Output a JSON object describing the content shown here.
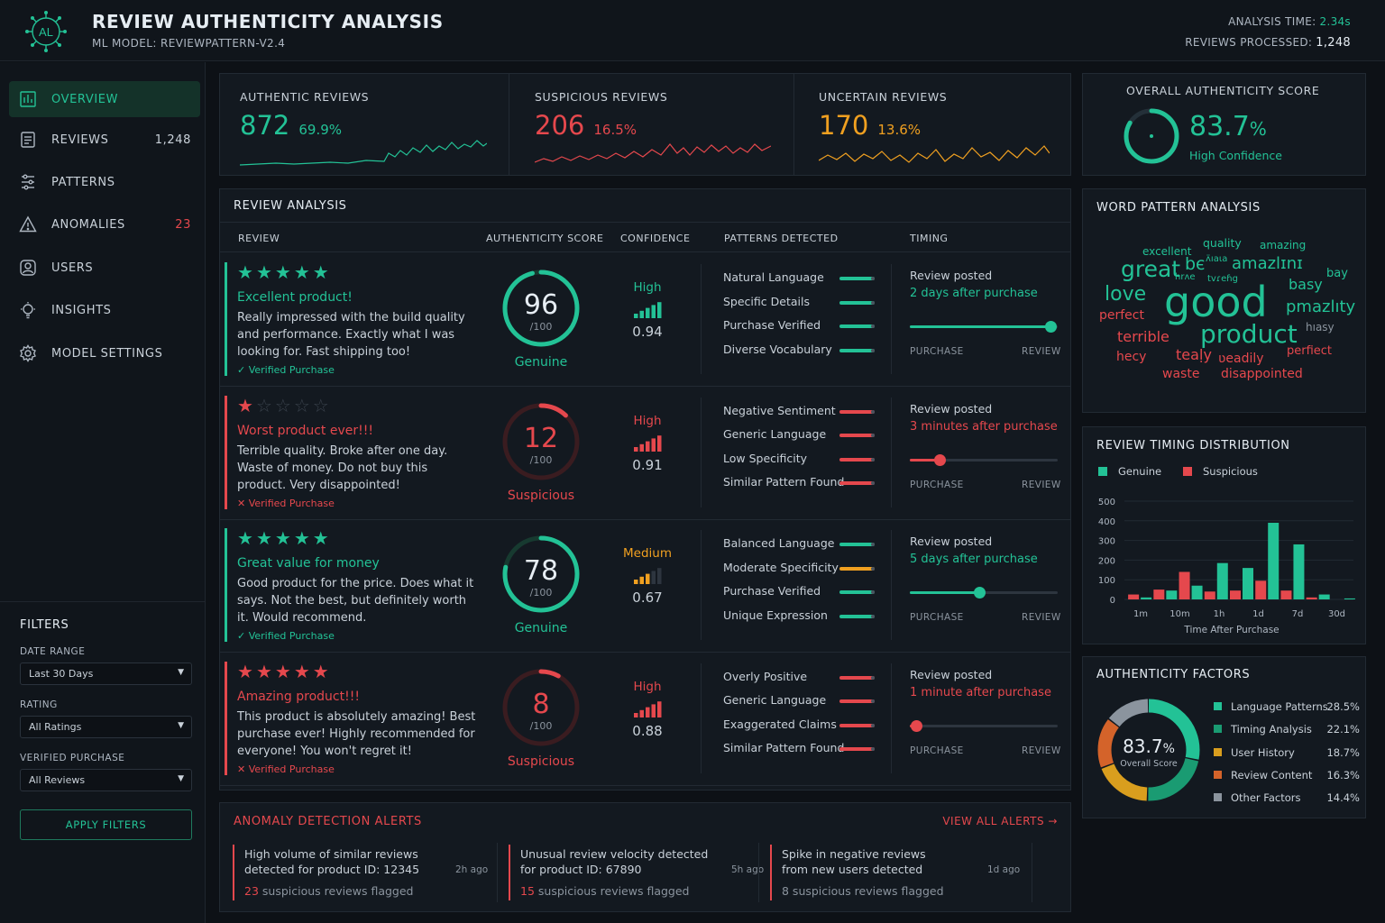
{
  "header": {
    "logo_text": "AL",
    "title": "REVIEW AUTHENTICITY ANALYSIS",
    "model": "ML MODEL: REVIEWPATTERN-V2.4",
    "analysis_time_label": "ANALYSIS TIME:",
    "analysis_time_value": "2.34s",
    "reviews_processed_label": "REVIEWS PROCESSED:",
    "reviews_processed_value": "1,248"
  },
  "sidebar": {
    "items": [
      {
        "label": "OVERVIEW",
        "count": "",
        "icon": "grid-chart-icon"
      },
      {
        "label": "REVIEWS",
        "count": "1,248",
        "icon": "document-icon"
      },
      {
        "label": "PATTERNS",
        "count": "",
        "icon": "pattern-icon"
      },
      {
        "label": "ANOMALIES",
        "count": "23",
        "icon": "warning-icon"
      },
      {
        "label": "USERS",
        "count": "",
        "icon": "user-icon"
      },
      {
        "label": "INSIGHTS",
        "count": "",
        "icon": "lightbulb-icon"
      },
      {
        "label": "MODEL SETTINGS",
        "count": "",
        "icon": "gear-icon"
      }
    ],
    "filters": {
      "title": "FILTERS",
      "date_range_label": "DATE RANGE",
      "date_range_value": "Last 30 Days",
      "rating_label": "RATING",
      "rating_value": "All Ratings",
      "verified_label": "VERIFIED PURCHASE",
      "verified_value": "All Reviews",
      "apply_label": "APPLY FILTERS"
    }
  },
  "stats": [
    {
      "label": "AUTHENTIC REVIEWS",
      "value": "872",
      "pct": "69.9%",
      "color": "#23c296"
    },
    {
      "label": "SUSPICIOUS REVIEWS",
      "value": "206",
      "pct": "16.5%",
      "color": "#e5484d"
    },
    {
      "label": "UNCERTAIN REVIEWS",
      "value": "170",
      "pct": "13.6%",
      "color": "#f0a020"
    }
  ],
  "overall": {
    "title": "OVERALL AUTHENTICITY SCORE",
    "value": "83.7",
    "pct_sign": "%",
    "confidence": "High Confidence",
    "fraction": 0.837
  },
  "review_analysis": {
    "title": "REVIEW ANALYSIS",
    "columns": [
      "REVIEW",
      "AUTHENTICITY SCORE",
      "CONFIDENCE",
      "PATTERNS DETECTED",
      "TIMING"
    ],
    "rows": [
      {
        "stars": 5,
        "title": "Excellent product!",
        "body": "Really impressed with the build quality and performance. Exactly what I was looking for. Fast shipping too!",
        "verified": "✓ Verified Purchase",
        "kind": "genuine",
        "score": "96",
        "score_den": "/100",
        "score_label": "Genuine",
        "confidence": "High",
        "conf_level": 5,
        "conf_value": "0.94",
        "patterns": [
          "Natural Language",
          "Specific Details",
          "Purchase Verified",
          "Diverse Vocabulary"
        ],
        "pattern_colors": [
          "#23c296",
          "#23c296",
          "#23c296",
          "#23c296"
        ],
        "timing_line1": "Review posted",
        "timing_line2": "2 days after purchase",
        "timing_pos": 0.95,
        "timing_left": "PURCHASE",
        "timing_right": "REVIEW"
      },
      {
        "stars": 1,
        "title": "Worst product ever!!!",
        "body": "Terrible quality. Broke after one day. Waste of money. Do not buy this product. Very disappointed!",
        "verified": "✕ Verified Purchase",
        "kind": "suspicious",
        "score": "12",
        "score_den": "/100",
        "score_label": "Suspicious",
        "confidence": "High",
        "conf_level": 5,
        "conf_value": "0.91",
        "patterns": [
          "Negative Sentiment",
          "Generic Language",
          "Low Specificity",
          "Similar Pattern Found"
        ],
        "pattern_colors": [
          "#e5484d",
          "#e5484d",
          "#e5484d",
          "#e5484d"
        ],
        "timing_line1": "Review posted",
        "timing_line2": "3 minutes after purchase",
        "timing_pos": 0.2,
        "timing_left": "PURCHASE",
        "timing_right": "REVIEW"
      },
      {
        "stars": 5,
        "title": "Great value for money",
        "body": "Good product for the price. Does what it says. Not the best, but definitely worth it. Would recommend.",
        "verified": "✓ Verified Purchase",
        "kind": "genuine",
        "score": "78",
        "score_den": "/100",
        "score_label": "Genuine",
        "confidence": "Medium",
        "conf_level": 3,
        "conf_value": "0.67",
        "patterns": [
          "Balanced Language",
          "Moderate Specificity",
          "Purchase Verified",
          "Unique Expression"
        ],
        "pattern_colors": [
          "#23c296",
          "#f0a020",
          "#23c296",
          "#23c296"
        ],
        "timing_line1": "Review posted",
        "timing_line2": "5 days after purchase",
        "timing_pos": 0.47,
        "timing_left": "PURCHASE",
        "timing_right": "REVIEW"
      },
      {
        "stars": 5,
        "title": "Amazing product!!!",
        "body": "This product is absolutely amazing! Best purchase ever! Highly recommended for everyone! You won't regret it!",
        "verified": "✕ Verified Purchase",
        "kind": "suspicious",
        "score": "8",
        "score_den": "/100",
        "score_label": "Suspicious",
        "confidence": "High",
        "conf_level": 5,
        "conf_value": "0.88",
        "patterns": [
          "Overly Positive",
          "Generic Language",
          "Exaggerated Claims",
          "Similar Pattern Found"
        ],
        "pattern_colors": [
          "#e5484d",
          "#e5484d",
          "#e5484d",
          "#e5484d"
        ],
        "timing_line1": "Review posted",
        "timing_line2": "1 minute after purchase",
        "timing_pos": 0.04,
        "timing_left": "PURCHASE",
        "timing_right": "REVIEW"
      }
    ]
  },
  "word_pattern": {
    "title": "WORD PATTERN ANALYSIS",
    "words": [
      {
        "t": "excellent",
        "c": "#23c296"
      },
      {
        "t": "quality",
        "c": "#23c296"
      },
      {
        "t": "amazing",
        "c": "#23c296"
      },
      {
        "t": "great",
        "c": "#23c296"
      },
      {
        "t": "bє",
        "c": "#23c296"
      },
      {
        "t": "ʌ̈ıaιa",
        "c": "#23c296"
      },
      {
        "t": "amazlɪnɪ",
        "c": "#23c296"
      },
      {
        "t": "bay",
        "c": "#23c296"
      },
      {
        "t": "love",
        "c": "#23c296"
      },
      {
        "t": "hrᴧe",
        "c": "#23c296"
      },
      {
        "t": "tvɾeɦg",
        "c": "#23c296"
      },
      {
        "t": "good",
        "c": "#23c296"
      },
      {
        "t": "basy",
        "c": "#23c296"
      },
      {
        "t": "perfect",
        "c": "#e5484d"
      },
      {
        "t": "pmazlıty",
        "c": "#23c296"
      },
      {
        "t": "product",
        "c": "#23c296"
      },
      {
        "t": "hıasy",
        "c": "#8b949e"
      },
      {
        "t": "terrible",
        "c": "#e5484d"
      },
      {
        "t": "perfiect",
        "c": "#e5484d"
      },
      {
        "t": "hecy",
        "c": "#e5484d"
      },
      {
        "t": "teaḷy",
        "c": "#e5484d"
      },
      {
        "t": "ʋeadily",
        "c": "#e5484d"
      },
      {
        "t": "waste",
        "c": "#e5484d"
      },
      {
        "t": "disappointed",
        "c": "#e5484d"
      }
    ]
  },
  "timing_chart": {
    "title": "REVIEW TIMING DISTRIBUTION",
    "legend": [
      {
        "name": "Genuine",
        "color": "#23c296"
      },
      {
        "name": "Suspicious",
        "color": "#e5484d"
      }
    ]
  },
  "chart_data": {
    "type": "bar",
    "title": "REVIEW TIMING DISTRIBUTION",
    "xlabel": "Time After Purchase",
    "ylabel": "",
    "ylim": [
      0,
      500
    ],
    "yticks": [
      0,
      100,
      200,
      300,
      400,
      500
    ],
    "x_tick_labels": [
      "1m",
      "10m",
      "1h",
      "1d",
      "7d",
      "30d"
    ],
    "grid": true,
    "legend_position": "top-left",
    "series": [
      {
        "name": "Genuine",
        "color": "#23c296",
        "values": [
          10,
          45,
          70,
          185,
          160,
          390,
          280,
          25,
          5
        ]
      },
      {
        "name": "Suspicious",
        "color": "#e5484d",
        "values": [
          25,
          50,
          140,
          40,
          45,
          95,
          45,
          10,
          0
        ]
      }
    ]
  },
  "factors": {
    "title": "AUTHENTICITY FACTORS",
    "center_value": "83.7",
    "center_pct": "%",
    "center_label": "Overall Score",
    "items": [
      {
        "name": "Language Patterns",
        "pct": "28.5%",
        "value": 28.5,
        "color": "#23c296"
      },
      {
        "name": "Timing Analysis",
        "pct": "22.1%",
        "value": 22.1,
        "color": "#1a9b72"
      },
      {
        "name": "User History",
        "pct": "18.7%",
        "value": 18.7,
        "color": "#d99e1e"
      },
      {
        "name": "Review Content",
        "pct": "16.3%",
        "value": 16.3,
        "color": "#d4632a"
      },
      {
        "name": "Other Factors",
        "pct": "14.4%",
        "value": 14.4,
        "color": "#8b949e"
      }
    ]
  },
  "alerts": {
    "title": "ANOMALY DETECTION ALERTS",
    "view_all": "VIEW ALL ALERTS →",
    "items": [
      {
        "line1": "High volume of similar reviews",
        "line2": "detected for product ID: 12345",
        "ago": "2h ago",
        "count": "23",
        "count_red": true,
        "tail": " suspicious reviews flagged"
      },
      {
        "line1": "Unusual review velocity detected",
        "line2": "for product ID: 67890",
        "ago": "5h ago",
        "count": "15",
        "count_red": true,
        "tail": " suspicious reviews flagged"
      },
      {
        "line1": "Spike in negative reviews",
        "line2": "from new users detected",
        "ago": "1d ago",
        "count": "8",
        "count_red": false,
        "tail": " suspicious reviews flagged"
      }
    ]
  }
}
